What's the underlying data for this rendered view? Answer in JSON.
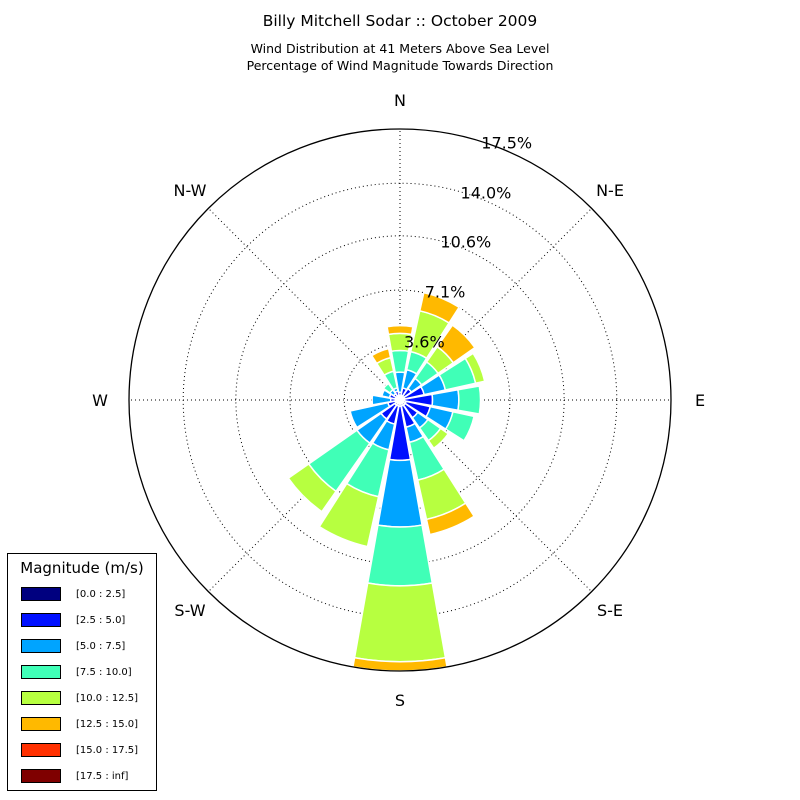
{
  "chart_data": {
    "type": "windrose",
    "title": "Billy Mitchell Sodar :: October 2009",
    "subtitle_line1": "Wind Distribution at 41 Meters Above Sea Level",
    "subtitle_line2": "Percentage of Wind Magnitude Towards Direction",
    "direction_labels": [
      "N",
      "N-E",
      "E",
      "S-E",
      "S",
      "S-W",
      "W",
      "N-W"
    ],
    "radial_ticks": [
      3.6,
      7.1,
      10.6,
      14.0,
      17.5
    ],
    "radial_tick_labels": [
      "3.6%",
      "7.1%",
      "10.6%",
      "14.0%",
      "17.5%"
    ],
    "r_max": 17.5,
    "legend_title": "Magnitude (m/s)",
    "bins": [
      {
        "label": "[0.0 : 2.5]",
        "color": "#00007f"
      },
      {
        "label": "[2.5 : 5.0]",
        "color": "#0010ff"
      },
      {
        "label": "[5.0 : 7.5]",
        "color": "#00a4ff"
      },
      {
        "label": "[7.5 : 10.0]",
        "color": "#40ffb7"
      },
      {
        "label": "[10.0 : 12.5]",
        "color": "#b7ff40"
      },
      {
        "label": "[12.5 : 15.0]",
        "color": "#ffb900"
      },
      {
        "label": "[15.0 : 17.5]",
        "color": "#ff3000"
      },
      {
        "label": "[17.5 : inf]",
        "color": "#7f0000"
      }
    ],
    "directions_deg": [
      0,
      22.5,
      45,
      67.5,
      90,
      112.5,
      135,
      157.5,
      180,
      202.5,
      225,
      247.5,
      270,
      292.5,
      315,
      337.5
    ],
    "cumulative_percent": [
      [
        0.3,
        0.5,
        1.8,
        3.2,
        4.3,
        4.8,
        4.8,
        4.8
      ],
      [
        0.3,
        0.8,
        2.0,
        3.2,
        5.9,
        7.1,
        7.1,
        7.1
      ],
      [
        0.3,
        0.9,
        1.7,
        3.0,
        4.2,
        5.9,
        5.9,
        5.9
      ],
      [
        0.3,
        1.6,
        3.0,
        5.0,
        5.6,
        5.6,
        5.6,
        5.6
      ],
      [
        0.3,
        2.1,
        3.8,
        5.2,
        5.2,
        5.2,
        5.2,
        5.2
      ],
      [
        0.4,
        2.0,
        3.5,
        4.9,
        4.9,
        4.9,
        4.9,
        4.9
      ],
      [
        0.4,
        1.4,
        2.2,
        3.2,
        3.8,
        3.8,
        3.8,
        3.8
      ],
      [
        0.4,
        1.8,
        2.8,
        5.3,
        7.9,
        8.9,
        8.9,
        8.9
      ],
      [
        0.4,
        3.9,
        8.2,
        12.0,
        16.9,
        17.5,
        17.5,
        17.5
      ],
      [
        0.4,
        1.6,
        3.3,
        6.4,
        9.7,
        9.7,
        9.7,
        9.7
      ],
      [
        0.4,
        1.5,
        3.4,
        7.2,
        8.8,
        8.8,
        8.8,
        8.8
      ],
      [
        0.3,
        0.8,
        3.3,
        3.3,
        3.3,
        3.3,
        3.3,
        3.3
      ],
      [
        0.3,
        0.6,
        1.8,
        1.8,
        1.8,
        1.8,
        1.8,
        1.8
      ],
      [
        0.3,
        0.7,
        1.2,
        1.2,
        1.2,
        1.2,
        1.2,
        1.2
      ],
      [
        0.3,
        0.5,
        0.8,
        1.3,
        1.3,
        1.3,
        1.3,
        1.3
      ],
      [
        0.3,
        0.6,
        0.8,
        1.9,
        2.8,
        3.4,
        3.4,
        3.4
      ]
    ],
    "grid": true,
    "legend_placement": "bottom-left"
  }
}
